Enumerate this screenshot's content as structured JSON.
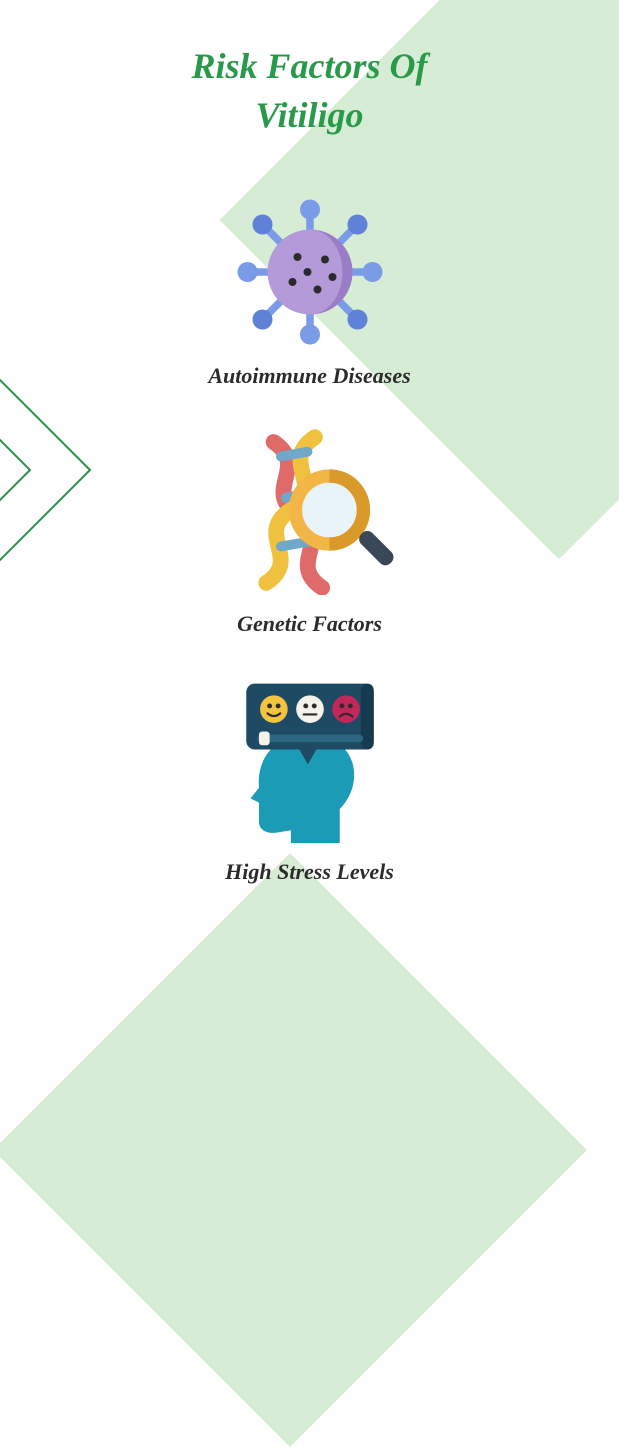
{
  "title": {
    "line1": "Risk Factors Of",
    "line2": "Vitiligo",
    "color": "#289a4a",
    "fontsize": 36
  },
  "background": {
    "diamond_color": "#d7ecd5",
    "page_bg": "#ffffff",
    "chevron_stroke": "#2a9147",
    "chevron_stroke_width": 2
  },
  "items": [
    {
      "label": "Autoimmune Diseases",
      "label_color": "#2b2b2b",
      "label_fontsize": 22,
      "icon": "virus",
      "icon_colors": {
        "body": "#b49ad8",
        "body_dark": "#9a7dc7",
        "spike": "#7a9be8",
        "spike_dark": "#5f82d8",
        "dot": "#2b2b2b"
      },
      "top_margin": 58,
      "icon_size": 150
    },
    {
      "label": "Genetic Factors",
      "label_color": "#2b2b2b",
      "label_fontsize": 22,
      "icon": "dna-magnifier",
      "icon_colors": {
        "strand_red": "#e06a6a",
        "strand_yellow": "#f0c03f",
        "strand_blue": "#6fa8c9",
        "lens_ring": "#f2b646",
        "lens_ring_dark": "#d99a2a",
        "lens_glass": "#e8f4f7",
        "handle": "#3a4757"
      },
      "top_margin": 36,
      "icon_size": 170
    },
    {
      "label": "High Stress Levels",
      "label_color": "#2b2b2b",
      "label_fontsize": 22,
      "icon": "stress-head",
      "icon_colors": {
        "head": "#1b9bb5",
        "bubble": "#1f4a63",
        "bubble_dark": "#163a4f",
        "face_happy": "#f2c440",
        "face_neutral": "#f5f2ea",
        "face_sad": "#c1275b",
        "slider_track": "#2b6780",
        "slider_knob": "#f5f2ea"
      },
      "top_margin": 36,
      "icon_size": 170
    }
  ]
}
